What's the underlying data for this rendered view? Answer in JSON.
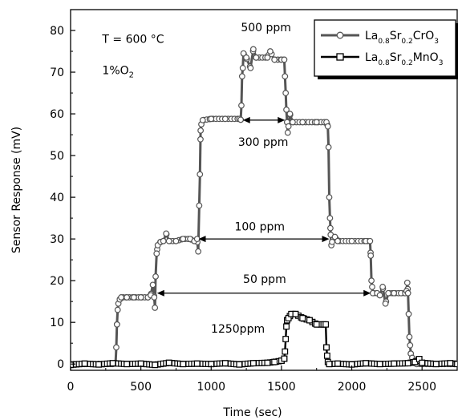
{
  "chart_data": {
    "type": "line",
    "xlabel": "Time (sec)",
    "ylabel": "Sensor Response (mV)",
    "xlim": [
      0,
      2750
    ],
    "ylim": [
      -1.5,
      85
    ],
    "xticks": [
      0,
      500,
      1000,
      1500,
      2000,
      2500
    ],
    "yticks": [
      0,
      10,
      20,
      30,
      40,
      50,
      60,
      70,
      80
    ],
    "grid": false,
    "legend_position": "top-right",
    "series": [
      {
        "name": "La0.8Sr0.2CrO3",
        "legend": [
          {
            "text": "La",
            "sub": false
          },
          {
            "text": "0.8",
            "sub": true
          },
          {
            "text": "Sr",
            "sub": false
          },
          {
            "text": "0.2",
            "sub": true
          },
          {
            "text": "CrO",
            "sub": false
          },
          {
            "text": "3",
            "sub": true
          }
        ],
        "marker": "circle",
        "color": "#555555",
        "points": [
          [
            0,
            0
          ],
          [
            100,
            0
          ],
          [
            200,
            0
          ],
          [
            300,
            0
          ],
          [
            320,
            0.3
          ],
          [
            325,
            4
          ],
          [
            330,
            9.5
          ],
          [
            335,
            13
          ],
          [
            340,
            14.5
          ],
          [
            350,
            15.5
          ],
          [
            360,
            16
          ],
          [
            400,
            16
          ],
          [
            450,
            16
          ],
          [
            500,
            16
          ],
          [
            550,
            16
          ],
          [
            570,
            16.5
          ],
          [
            585,
            19
          ],
          [
            595,
            16
          ],
          [
            600,
            13.5
          ],
          [
            605,
            21
          ],
          [
            612,
            26.5
          ],
          [
            620,
            28.5
          ],
          [
            640,
            29.3
          ],
          [
            660,
            29.5
          ],
          [
            680,
            31.3
          ],
          [
            700,
            29.5
          ],
          [
            750,
            29.5
          ],
          [
            800,
            30
          ],
          [
            850,
            30
          ],
          [
            880,
            29.5
          ],
          [
            900,
            30
          ],
          [
            908,
            27
          ],
          [
            915,
            38
          ],
          [
            920,
            45.5
          ],
          [
            925,
            56
          ],
          [
            930,
            57.5
          ],
          [
            940,
            58.5
          ],
          [
            1000,
            58.8
          ],
          [
            1100,
            58.8
          ],
          [
            1200,
            58.8
          ],
          [
            1210,
            58.6
          ],
          [
            1215,
            62
          ],
          [
            1220,
            69
          ],
          [
            1225,
            71
          ],
          [
            1230,
            74.5
          ],
          [
            1250,
            73.5
          ],
          [
            1280,
            71
          ],
          [
            1300,
            75.5
          ],
          [
            1320,
            73.5
          ],
          [
            1400,
            73.5
          ],
          [
            1420,
            75
          ],
          [
            1450,
            73
          ],
          [
            1500,
            73
          ],
          [
            1520,
            73
          ],
          [
            1525,
            69
          ],
          [
            1530,
            65
          ],
          [
            1535,
            61
          ],
          [
            1540,
            58
          ],
          [
            1545,
            55.5
          ],
          [
            1550,
            57
          ],
          [
            1560,
            60
          ],
          [
            1580,
            58
          ],
          [
            1650,
            58
          ],
          [
            1750,
            58
          ],
          [
            1820,
            58
          ],
          [
            1830,
            57
          ],
          [
            1835,
            52
          ],
          [
            1840,
            40
          ],
          [
            1845,
            35
          ],
          [
            1850,
            31
          ],
          [
            1855,
            28.5
          ],
          [
            1860,
            29.3
          ],
          [
            1880,
            30.5
          ],
          [
            1900,
            29.5
          ],
          [
            2000,
            29.5
          ],
          [
            2100,
            29.5
          ],
          [
            2130,
            29.5
          ],
          [
            2135,
            26
          ],
          [
            2140,
            20
          ],
          [
            2145,
            18.5
          ],
          [
            2150,
            17
          ],
          [
            2180,
            17
          ],
          [
            2200,
            16.5
          ],
          [
            2220,
            18.5
          ],
          [
            2240,
            14.5
          ],
          [
            2260,
            17
          ],
          [
            2300,
            17
          ],
          [
            2350,
            17
          ],
          [
            2380,
            17
          ],
          [
            2390,
            17.5
          ],
          [
            2395,
            19.5
          ],
          [
            2400,
            17
          ],
          [
            2405,
            12
          ],
          [
            2410,
            6.5
          ],
          [
            2415,
            4.5
          ],
          [
            2420,
            2.5
          ],
          [
            2430,
            1.5
          ],
          [
            2440,
            0.5
          ],
          [
            2460,
            0
          ],
          [
            2500,
            0
          ],
          [
            2600,
            0
          ],
          [
            2700,
            0
          ],
          [
            2750,
            0
          ]
        ]
      },
      {
        "name": "La0.8Sr0.2MnO3",
        "legend": [
          {
            "text": "La",
            "sub": false
          },
          {
            "text": "0.8",
            "sub": true
          },
          {
            "text": "Sr",
            "sub": false
          },
          {
            "text": "0.2",
            "sub": true
          },
          {
            "text": "MnO",
            "sub": false
          },
          {
            "text": "3",
            "sub": true
          }
        ],
        "marker": "square",
        "color": "#000000",
        "points": [
          [
            0,
            -0.2
          ],
          [
            100,
            0.1
          ],
          [
            200,
            -0.1
          ],
          [
            300,
            0.2
          ],
          [
            400,
            0
          ],
          [
            500,
            0.1
          ],
          [
            600,
            -0.2
          ],
          [
            700,
            0.3
          ],
          [
            800,
            0
          ],
          [
            900,
            0.1
          ],
          [
            1000,
            0
          ],
          [
            1100,
            0.2
          ],
          [
            1200,
            -0.1
          ],
          [
            1300,
            0.2
          ],
          [
            1400,
            0.3
          ],
          [
            1450,
            0.5
          ],
          [
            1500,
            0.8
          ],
          [
            1520,
            1.3
          ],
          [
            1525,
            3
          ],
          [
            1530,
            6
          ],
          [
            1535,
            9
          ],
          [
            1540,
            10.5
          ],
          [
            1550,
            11
          ],
          [
            1570,
            12
          ],
          [
            1600,
            12
          ],
          [
            1650,
            11
          ],
          [
            1700,
            10.5
          ],
          [
            1750,
            9.5
          ],
          [
            1800,
            9.5
          ],
          [
            1815,
            9.5
          ],
          [
            1820,
            4
          ],
          [
            1825,
            2
          ],
          [
            1830,
            0.5
          ],
          [
            1840,
            0
          ],
          [
            1900,
            0.1
          ],
          [
            2000,
            -0.1
          ],
          [
            2100,
            0.2
          ],
          [
            2200,
            0
          ],
          [
            2300,
            0.1
          ],
          [
            2400,
            0.2
          ],
          [
            2450,
            0.5
          ],
          [
            2480,
            1.2
          ],
          [
            2500,
            0.3
          ],
          [
            2600,
            0
          ],
          [
            2700,
            0.2
          ],
          [
            2750,
            0
          ]
        ]
      }
    ],
    "annotations": [
      {
        "text": "500 ppm",
        "x": 1390,
        "y": 79.8
      },
      {
        "text": "300 ppm",
        "x": 1370,
        "y": 52.3
      },
      {
        "text": "100 ppm",
        "x": 1345,
        "y": 32.0
      },
      {
        "text": "50 ppm",
        "x": 1380,
        "y": 19.5
      },
      {
        "text": "1250ppm",
        "x": 1190,
        "y": 7.5
      },
      {
        "text": "T = 600  °C",
        "x": 225,
        "y": 77
      },
      {
        "text": "1%O",
        "sub": "2",
        "x": 225,
        "y": 69.5
      }
    ],
    "arrows": [
      {
        "x1": 1225,
        "x2": 1525,
        "y": 58.5
      },
      {
        "x1": 910,
        "x2": 1840,
        "y": 30
      },
      {
        "x1": 615,
        "x2": 2135,
        "y": 17
      }
    ]
  }
}
